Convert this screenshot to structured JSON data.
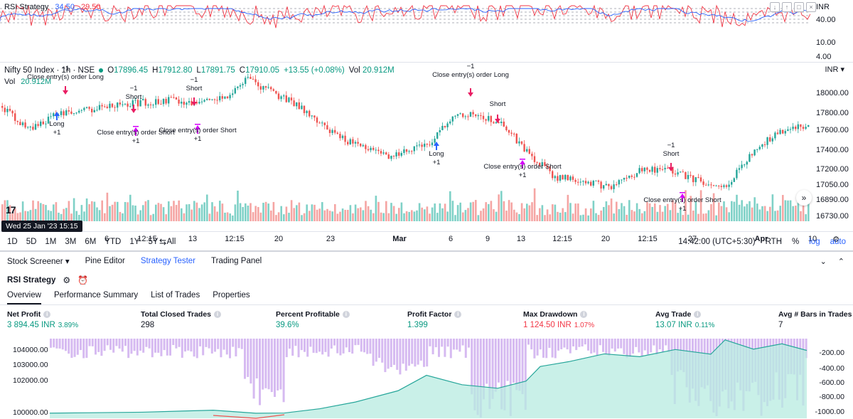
{
  "rsi_pane": {
    "name": "RSI Strategy",
    "value1": "34.50",
    "value2": "29.50",
    "currency": "INR",
    "axis_labels": [
      "40.00",
      "10.00",
      "4.00"
    ]
  },
  "symbol": {
    "title": "Nifty 50 Index · 1h · NSE",
    "open_label": "O",
    "open": "17896.45",
    "high_label": "H",
    "high": "17912.80",
    "low_label": "L",
    "low": "17891.75",
    "close_label": "C",
    "close": "17910.05",
    "change": "+13.55 (+0.08%)",
    "vol_label": "Vol",
    "vol": "20.912M",
    "currency": "INR",
    "volume_title": "Vol",
    "volume_value": "20.912M"
  },
  "price_axis": [
    "18000.00",
    "17800.00",
    "17600.00",
    "17400.00",
    "17200.00",
    "17050.00",
    "16890.00",
    "16730.00"
  ],
  "signals": [
    {
      "top": "−1",
      "text": "Close entry(s) order Long"
    },
    {
      "top": "−1",
      "text": "Short"
    },
    {
      "top": "−1",
      "text": "Short"
    },
    {
      "top": "Long",
      "text": "+1"
    },
    {
      "top": "Close entry(s) order Short",
      "text": "+1"
    },
    {
      "top": "Close entry(s) order Short",
      "text": "+1"
    },
    {
      "top": "−1",
      "text": "Close entry(s) order Long"
    },
    {
      "top": "Short",
      "text": ""
    },
    {
      "top": "Long",
      "text": "+1"
    },
    {
      "top": "Close entry(s) order Short",
      "text": "+1"
    },
    {
      "top": "−1",
      "text": "Short"
    },
    {
      "top": "Close entry(s) order Short",
      "text": "+1"
    }
  ],
  "date_badge": "Wed 25 Jan '23  15:15",
  "time_axis": [
    "6",
    "12:15",
    "13",
    "12:15",
    "20",
    "23",
    "Mar",
    "6",
    "9",
    "13",
    "12:15",
    "20",
    "12:15",
    "27",
    "Apr",
    "10"
  ],
  "ranges": [
    "1D",
    "5D",
    "1M",
    "3M",
    "6M",
    "YTD",
    "1Y",
    "5Y",
    "All"
  ],
  "clock": "14:42:00 (UTC+5:30)",
  "rth": "RTH",
  "pct": "%",
  "log": "log",
  "auto": "auto",
  "panel_tabs": [
    "Stock Screener",
    "Pine Editor",
    "Strategy Tester",
    "Trading Panel"
  ],
  "strategy_name": "RSI Strategy",
  "sub_tabs": [
    "Overview",
    "Performance Summary",
    "List of Trades",
    "Properties"
  ],
  "metrics": {
    "net_profit": {
      "label": "Net Profit",
      "value": "3 894.45 INR",
      "sub": "3.89%"
    },
    "closed_trades": {
      "label": "Total Closed Trades",
      "value": "298"
    },
    "percent_profitable": {
      "label": "Percent Profitable",
      "value": "39.6%"
    },
    "profit_factor": {
      "label": "Profit Factor",
      "value": "1.399"
    },
    "max_drawdown": {
      "label": "Max Drawdown",
      "value": "1 124.50 INR",
      "sub": "1.07%"
    },
    "avg_trade": {
      "label": "Avg Trade",
      "value": "13.07 INR",
      "sub": "0.11%"
    },
    "avg_bars": {
      "label": "Avg # Bars in Trades",
      "value": "7"
    }
  },
  "equity_axis_left": [
    "104000.00",
    "103000.00",
    "102000.00",
    "100000.00"
  ],
  "equity_axis_right": [
    "-200.00",
    "-400.00",
    "-600.00",
    "-800.00",
    "-1000.00"
  ],
  "colors": {
    "up": "#26a69a",
    "down": "#ef5350",
    "rsi_blue": "#2962ff",
    "rsi_red": "#f23645",
    "accent": "#2962ff",
    "drawdown": "#d1b3f0",
    "equity_fill": "#b7ebe0",
    "signal_long": "#2962ff",
    "signal_short": "#e91e63",
    "signal_close": "#d500f9"
  }
}
